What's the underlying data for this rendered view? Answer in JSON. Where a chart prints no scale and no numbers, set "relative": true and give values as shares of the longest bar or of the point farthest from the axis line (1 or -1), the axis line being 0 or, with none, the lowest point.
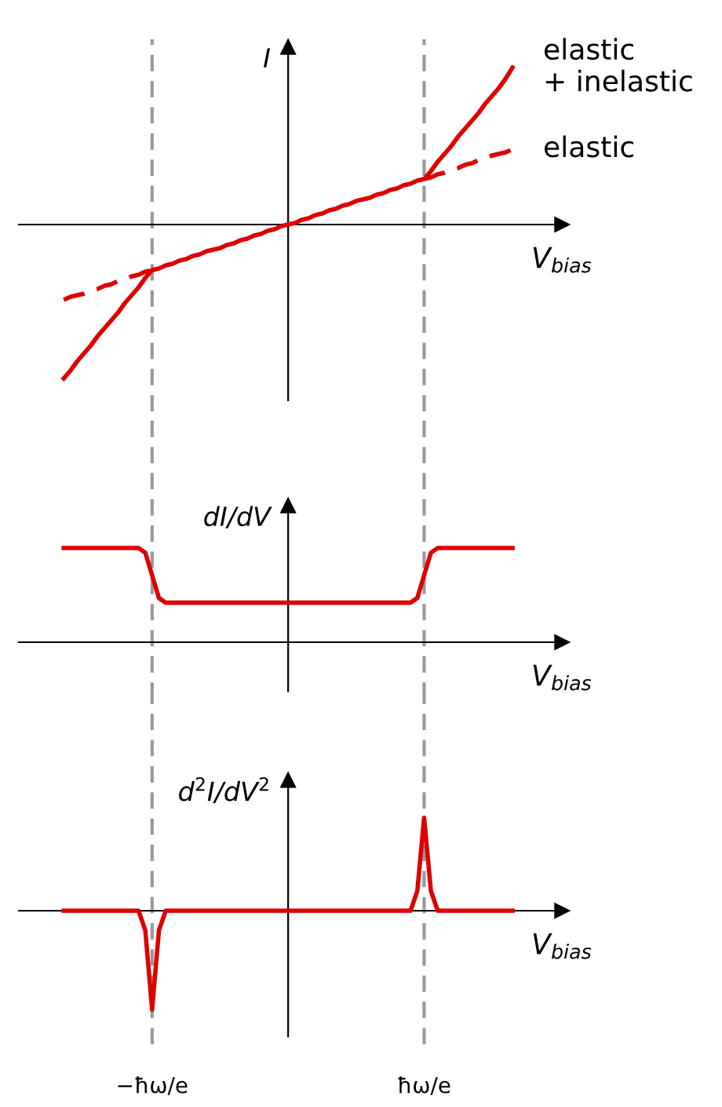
{
  "chart_data": [
    {
      "type": "line",
      "relative": true,
      "ylabel": "I",
      "xlabel": "V$_{bias}$",
      "tick_labels": false,
      "legend": false,
      "marker": "none",
      "categories": [
        null,
        null,
        null,
        null,
        null,
        null,
        null,
        null,
        null,
        null,
        null,
        null,
        null,
        "−ħω/e",
        null,
        null,
        null,
        null,
        null,
        null,
        null,
        null,
        null,
        null,
        null,
        null,
        null,
        null,
        null,
        null,
        null,
        null,
        null,
        null,
        null,
        null,
        null,
        null,
        null,
        null,
        null,
        null,
        null,
        null,
        null,
        null,
        null,
        null,
        null,
        null,
        null,
        null,
        null,
        "ħω/e",
        null,
        null,
        null,
        null,
        null,
        null,
        null,
        null,
        null,
        null,
        null,
        null,
        null
      ],
      "series": [
        {
          "name": "elastic\n+ inelastic",
          "color": "#dd0000",
          "line_style": "solid",
          "values": [
            -0.98,
            -0.93,
            -0.87,
            -0.82,
            -0.77,
            -0.71,
            -0.66,
            -0.61,
            -0.56,
            -0.5,
            -0.45,
            -0.4,
            -0.34,
            -0.29,
            -0.28,
            -0.26,
            -0.25,
            -0.23,
            -0.22,
            -0.2,
            -0.19,
            -0.17,
            -0.16,
            -0.15,
            -0.13,
            -0.12,
            -0.1,
            -0.09,
            -0.07,
            -0.06,
            -0.04,
            -0.03,
            -0.01,
            0,
            0.01,
            0.03,
            0.04,
            0.06,
            0.07,
            0.09,
            0.1,
            0.12,
            0.13,
            0.15,
            0.16,
            0.17,
            0.19,
            0.2,
            0.22,
            0.23,
            0.25,
            0.26,
            0.28,
            0.29,
            0.34,
            0.4,
            0.45,
            0.5,
            0.56,
            0.61,
            0.66,
            0.71,
            0.77,
            0.82,
            0.87,
            0.93,
            1.0
          ]
        },
        {
          "name": "elastic",
          "color": "#dd0000",
          "line_style": "dashed",
          "values": [
            -0.48,
            -0.46,
            -0.45,
            -0.44,
            -0.42,
            -0.41,
            -0.39,
            -0.38,
            -0.36,
            -0.35,
            -0.33,
            -0.32,
            -0.3,
            -0.29,
            null,
            null,
            null,
            null,
            null,
            null,
            null,
            null,
            null,
            null,
            null,
            null,
            null,
            null,
            null,
            null,
            null,
            null,
            null,
            null,
            null,
            null,
            null,
            null,
            null,
            null,
            null,
            null,
            null,
            null,
            null,
            null,
            null,
            null,
            null,
            null,
            null,
            null,
            null,
            0.29,
            0.3,
            0.32,
            0.33,
            0.35,
            0.36,
            0.38,
            0.39,
            0.41,
            0.42,
            0.44,
            0.45,
            0.46,
            0.48
          ]
        }
      ],
      "ref_lines": [
        {
          "axis": "x",
          "value": "−ħω/e",
          "color": "#999999",
          "line_style": "dashed"
        },
        {
          "axis": "x",
          "value": "ħω/e",
          "color": "#999999",
          "line_style": "dashed"
        }
      ]
    },
    {
      "type": "line",
      "relative": true,
      "ylabel": "dI/dV",
      "xlabel": "V$_{bias}$",
      "tick_labels": false,
      "legend": false,
      "marker": "none",
      "categories": [
        null,
        null,
        null,
        null,
        null,
        null,
        null,
        null,
        null,
        null,
        null,
        null,
        null,
        "−ħω/e",
        null,
        null,
        null,
        null,
        null,
        null,
        null,
        null,
        null,
        null,
        null,
        null,
        null,
        null,
        null,
        null,
        null,
        null,
        null,
        null,
        null,
        null,
        null,
        null,
        null,
        null,
        null,
        null,
        null,
        null,
        null,
        null,
        null,
        null,
        null,
        null,
        null,
        null,
        null,
        "ħω/e",
        null,
        null,
        null,
        null,
        null,
        null,
        null,
        null,
        null,
        null,
        null,
        null,
        null
      ],
      "series": [
        {
          "color": "#dd0000",
          "line_style": "solid",
          "values": [
            1,
            1,
            1,
            1,
            1,
            1,
            1,
            1,
            1,
            1,
            1,
            1,
            0.95,
            0.71,
            0.47,
            0.42,
            0.42,
            0.42,
            0.42,
            0.42,
            0.42,
            0.42,
            0.42,
            0.42,
            0.42,
            0.42,
            0.42,
            0.42,
            0.42,
            0.42,
            0.42,
            0.42,
            0.42,
            0.42,
            0.42,
            0.42,
            0.42,
            0.42,
            0.42,
            0.42,
            0.42,
            0.42,
            0.42,
            0.42,
            0.42,
            0.42,
            0.42,
            0.42,
            0.42,
            0.42,
            0.42,
            0.42,
            0.47,
            0.71,
            0.95,
            1,
            1,
            1,
            1,
            1,
            1,
            1,
            1,
            1,
            1,
            1,
            1
          ]
        }
      ],
      "ref_lines": [
        {
          "axis": "x",
          "value": "−ħω/e",
          "color": "#999999",
          "line_style": "dashed"
        },
        {
          "axis": "x",
          "value": "ħω/e",
          "color": "#999999",
          "line_style": "dashed"
        }
      ]
    },
    {
      "type": "line",
      "relative": true,
      "ylabel": "d$^{2}$I/dV$^{2}$",
      "xlabel": "V$_{bias}$",
      "tick_labels": "x",
      "legend": false,
      "marker": "none",
      "categories": [
        null,
        null,
        null,
        null,
        null,
        null,
        null,
        null,
        null,
        null,
        null,
        null,
        null,
        "−ħω/e",
        null,
        null,
        null,
        null,
        null,
        null,
        null,
        null,
        null,
        null,
        null,
        null,
        null,
        null,
        null,
        null,
        null,
        null,
        null,
        null,
        null,
        null,
        null,
        null,
        null,
        null,
        null,
        null,
        null,
        null,
        null,
        null,
        null,
        null,
        null,
        null,
        null,
        null,
        null,
        "ħω/e",
        null,
        null,
        null,
        null,
        null,
        null,
        null,
        null,
        null,
        null,
        null,
        null,
        null
      ],
      "series": [
        {
          "color": "#dd0000",
          "line_style": "solid",
          "values": [
            0,
            0,
            0,
            0,
            0,
            0,
            0,
            0,
            0,
            0,
            0,
            0,
            -0.2,
            -1,
            -0.2,
            0,
            0,
            0,
            0,
            0,
            0,
            0,
            0,
            0,
            0,
            0,
            0,
            0,
            0,
            0,
            0,
            0,
            0,
            0,
            0,
            0,
            0,
            0,
            0,
            0,
            0,
            0,
            0,
            0,
            0,
            0,
            0,
            0,
            0,
            0,
            0,
            0,
            0.2,
            0.94,
            0.2,
            0,
            0,
            0,
            0,
            0,
            0,
            0,
            0,
            0,
            0,
            0,
            0
          ]
        }
      ],
      "ref_lines": [
        {
          "axis": "x",
          "value": "−ħω/e",
          "color": "#999999",
          "line_style": "dashed"
        },
        {
          "axis": "x",
          "value": "ħω/e",
          "color": "#999999",
          "line_style": "dashed"
        }
      ]
    }
  ]
}
